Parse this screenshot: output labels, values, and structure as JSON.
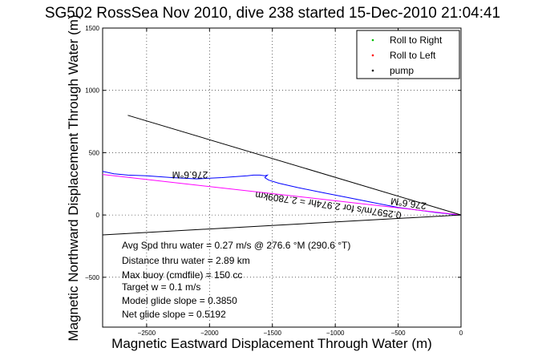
{
  "chart_data": {
    "type": "line",
    "title": "SG502 RossSea Nov 2010, dive 238 started 15-Dec-2010 21:04:41",
    "xlabel": "Magnetic Eastward Displacement Through Water (m)",
    "ylabel": "Magnetic Northward Displacement Through Water (m)",
    "xlim": [
      -2850,
      0
    ],
    "ylim": [
      -900,
      1500
    ],
    "xticks": [
      -2500,
      -2000,
      -1500,
      -1000,
      -500,
      0
    ],
    "xtick_labels": [
      "−2500",
      "−2000",
      "−1500",
      "−1000",
      "−500",
      "0"
    ],
    "yticks": [
      -500,
      0,
      500,
      1000,
      1500
    ],
    "ytick_labels": [
      "−500",
      "0",
      "500",
      "1000",
      "1500"
    ],
    "grid": true,
    "legend_position": "top-right",
    "legend": [
      {
        "label": "Roll to Right",
        "color": "#00c000",
        "marker": "dot"
      },
      {
        "label": "Roll to Left",
        "color": "#ff0000",
        "marker": "dot"
      },
      {
        "label": "pump",
        "color": "#000000",
        "marker": "dot"
      }
    ],
    "series": [
      {
        "color": "#0000ff",
        "x": [
          -2850,
          -2760,
          -2650,
          -2500,
          -2300,
          -2100,
          -1900,
          -1700,
          -1650,
          -1600,
          -1560,
          -1540,
          -1560,
          -1530,
          -1450,
          -1300,
          -1100,
          -900,
          -700,
          -500,
          -350,
          -200,
          -100,
          -40,
          0
        ],
        "y": [
          350,
          330,
          320,
          315,
          300,
          290,
          300,
          315,
          320,
          320,
          315,
          320,
          300,
          280,
          255,
          220,
          180,
          140,
          100,
          60,
          40,
          20,
          10,
          0,
          0
        ]
      },
      {
        "color": "#ff00ff",
        "x": [
          -2850,
          0
        ],
        "y": [
          325,
          0
        ]
      },
      {
        "color": "#000000",
        "x": [
          -2650,
          0
        ],
        "y": [
          800,
          0
        ]
      },
      {
        "color": "#000000",
        "x": [
          -2850,
          0
        ],
        "y": [
          -160,
          0
        ]
      }
    ],
    "annotations": {
      "heading_upper": "276.6°M",
      "heading_lower": "276.6°M",
      "track_label": "0.2597m/s for 2.974hr = 2.7809km"
    },
    "stats": [
      "Avg Spd thru water =  0.27 m/s @ 276.6   °M (290.6 °T)",
      "Distance thru water =  2.89 km",
      "Max buoy (cmdfile) = 150 cc",
      "Target w = 0.1 m/s",
      "Model glide slope = 0.3850",
      "Net glide slope = 0.5192"
    ]
  }
}
